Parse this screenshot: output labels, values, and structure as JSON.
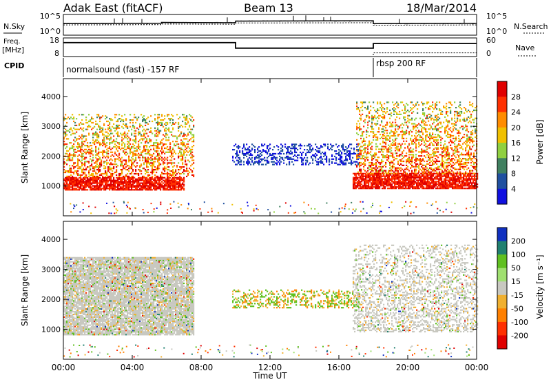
{
  "header": {
    "station": "Adak East (fitACF)",
    "beam": "Beam 13",
    "date": "18/Mar/2014"
  },
  "top_panels": {
    "nsky_label": "N.Sky",
    "nsearch_label": "N.Search",
    "noise_ticks": [
      "10^5",
      "10^0"
    ],
    "freq_label_1": "Freq.",
    "freq_label_2": "[MHz]",
    "freq_ticks": [
      "18",
      "8"
    ],
    "nave_label": "Nave",
    "nave_ticks": [
      "60",
      "0"
    ],
    "cpid_label": "CPID",
    "cpid_1": "normalsound (fast) -157 RF",
    "cpid_2": "rbsp 200 RF"
  },
  "chart_data": [
    {
      "type": "line",
      "title": "",
      "ylabel": "N.Sky / N.Search",
      "yscale": "log",
      "ylim": [
        1,
        100000
      ],
      "x_hours": [
        0,
        5.7,
        5.7,
        10,
        10,
        18,
        18,
        24
      ],
      "series": [
        {
          "name": "N.Sky",
          "values": [
            600,
            800,
            1200,
            1000,
            2500,
            3000,
            600,
            700
          ]
        },
        {
          "name": "N.Search",
          "values": [
            300,
            350,
            500,
            450,
            900,
            1000,
            250,
            300
          ]
        }
      ]
    },
    {
      "type": "line",
      "title": "",
      "ylabel": "Freq. [MHz]",
      "ylim": [
        8,
        18
      ],
      "x_hours": [
        0,
        10,
        10,
        18,
        18,
        24
      ],
      "series": [
        {
          "name": "Freq.",
          "values": [
            15.5,
            15.5,
            12.5,
            12.5,
            15.0,
            15.0
          ]
        },
        {
          "name": "Nave",
          "values": [
            8,
            8,
            8,
            8,
            10,
            10
          ]
        }
      ]
    },
    {
      "type": "heatmap",
      "title": "",
      "ylabel": "Slant Range [km]",
      "colorbar_label": "Power [dB]",
      "colorbar_ticks": [
        "28",
        "24",
        "20",
        "16",
        "12",
        "8",
        "4"
      ],
      "colors": [
        "#e00000",
        "#ff3000",
        "#ff8c00",
        "#f0c000",
        "#90d040",
        "#408060",
        "#2050a0",
        "#1010e0"
      ],
      "ylim": [
        0,
        4600
      ],
      "yticks": [
        "4000",
        "3000",
        "2000",
        "1000"
      ],
      "features": [
        {
          "start_h": 0,
          "end_h": 7.0,
          "range_from": 850,
          "range_to": 1300,
          "level": 28
        },
        {
          "start_h": 0,
          "end_h": 7.6,
          "range_from": 1300,
          "range_to": 3400,
          "level": 20
        },
        {
          "start_h": 9.8,
          "end_h": 17.2,
          "range_from": 1700,
          "range_to": 2400,
          "level": 6
        },
        {
          "start_h": 16.8,
          "end_h": 24,
          "range_from": 900,
          "range_to": 1400,
          "level": 28
        },
        {
          "start_h": 17.0,
          "end_h": 24,
          "range_from": 1400,
          "range_to": 3800,
          "level": 18
        }
      ]
    },
    {
      "type": "heatmap",
      "title": "",
      "ylabel": "Slant Range [km]",
      "colorbar_label": "Velocity [m s⁻¹]",
      "colorbar_ticks": [
        "200",
        "100",
        "50",
        "15",
        "-15",
        "-50",
        "-100",
        "-200"
      ],
      "colors": [
        "#1030c0",
        "#208070",
        "#60c020",
        "#a0e070",
        "#c8c8c0",
        "#f0b030",
        "#ff8000",
        "#ff3000",
        "#e00000"
      ],
      "ylim": [
        0,
        4600
      ],
      "yticks": [
        "4000",
        "3000",
        "2000",
        "1000"
      ],
      "features": [
        {
          "start_h": 0,
          "end_h": 7.6,
          "range_from": 800,
          "range_to": 3400,
          "level": 0
        },
        {
          "start_h": 9.8,
          "end_h": 17.2,
          "range_from": 1700,
          "range_to": 2300,
          "level": 20
        },
        {
          "start_h": 16.8,
          "end_h": 24,
          "range_from": 900,
          "range_to": 3800,
          "level": 0
        }
      ]
    }
  ],
  "time_axis": {
    "label": "Time UT",
    "ticks": [
      "00:00",
      "04:00",
      "08:00",
      "12:00",
      "16:00",
      "20:00",
      "00:00"
    ]
  }
}
